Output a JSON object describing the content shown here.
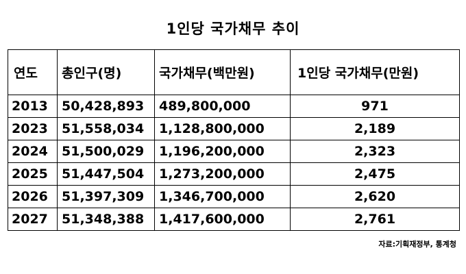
{
  "title": "1인당 국가채무 추이",
  "table": {
    "headers": [
      "연도",
      "총인구(명)",
      "국가채무(백만원)",
      "1인당 국가채무(만원)"
    ],
    "rows": [
      [
        "2013",
        "50,428,893",
        "489,800,000",
        "971"
      ],
      [
        "2023",
        "51,558,034",
        "1,128,800,000",
        "2,189"
      ],
      [
        "2024",
        "51,500,029",
        "1,196,200,000",
        "2,323"
      ],
      [
        "2025",
        "51,447,504",
        "1,273,200,000",
        "2,475"
      ],
      [
        "2026",
        "51,397,309",
        "1,346,700,000",
        "2,620"
      ],
      [
        "2027",
        "51,348,388",
        "1,417,600,000",
        "2,761"
      ]
    ]
  },
  "source": "자료:기획재정부, 통계청"
}
